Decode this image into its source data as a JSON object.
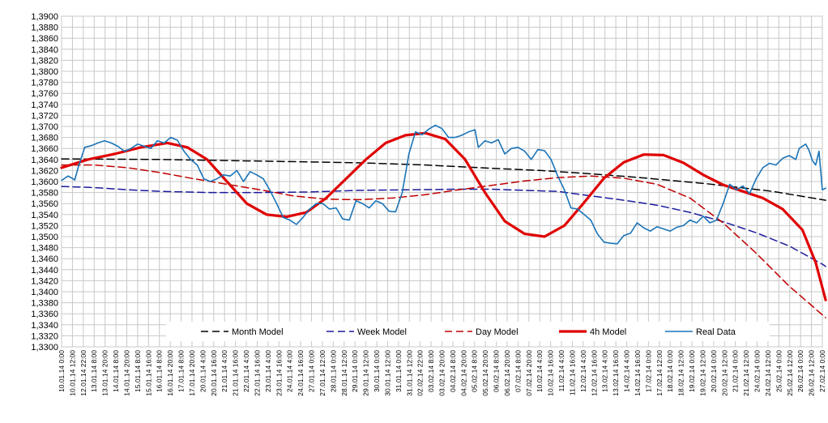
{
  "chart_data": {
    "type": "line",
    "title": "",
    "xlabel": "",
    "ylabel": "",
    "grid": true,
    "legend_position": "bottom",
    "ylim": [
      1.33,
      1.39
    ],
    "y_tick_step": 0.002,
    "x_tick_labels": [
      "10.01.14 0:00",
      "10.01.14 12:00",
      "12.01.14 22:00",
      "13.01.14 8:00",
      "13.01.14 20:00",
      "14.01.14 8:00",
      "14.01.14 20:00",
      "15.01.14 8:00",
      "15.01.14 16:00",
      "16.01.14 8:00",
      "16.01.14 20:00",
      "17.01.14 8:00",
      "17.01.14 20:00",
      "20.01.14 4:00",
      "20.01.14 16:00",
      "21.01.14 4:00",
      "21.01.14 16:00",
      "22.01.14 4:00",
      "22.01.14 16:00",
      "23.01.14 4:00",
      "23.01.14 16:00",
      "24.01.14 4:00",
      "24.01.14 16:00",
      "27.01.14 0:00",
      "27.01.14 12:00",
      "28.01.14 0:00",
      "28.01.14 12:00",
      "29.01.14 0:00",
      "29.01.14 12:00",
      "30.01.14 0:00",
      "30.01.14 12:00",
      "31.01.14 0:00",
      "31.01.14 12:00",
      "02.02.14 22:00",
      "03.02.14 8:00",
      "03.02.14 20:00",
      "04.02.14 8:00",
      "04.02.14 20:00",
      "05.02.14 8:00",
      "05.02.14 20:00",
      "06.02.14 8:00",
      "06.02.14 20:00",
      "07.02.14 8:00",
      "07.02.14 20:00",
      "10.02.14 4:00",
      "10.02.14 16:00",
      "11.02.14 4:00",
      "11.02.14 16:00",
      "12.02.14 4:00",
      "12.02.14 16:00",
      "13.02.14 4:00",
      "13.02.14 16:00",
      "14.02.14 4:00",
      "14.02.14 16:00",
      "17.02.14 0:00",
      "17.02.14 12:00",
      "18.02.14 0:00",
      "18.02.14 12:00",
      "19.02.14 0:00",
      "19.02.14 12:00",
      "20.02.14 0:00",
      "20.02.14 12:00",
      "21.02.14 0:00",
      "21.02.14 12:00",
      "24.02.14 0:00",
      "24.02.14 12:00",
      "25.02.14 0:00",
      "25.02.14 12:00",
      "26.02.14 0:00",
      "26.02.14 12:00",
      "27.02.14 0:00"
    ],
    "x_point_count": 231,
    "series": [
      {
        "name": "Month Model",
        "color": "#000000",
        "style": "dashed",
        "points": [
          [
            0,
            1.3641
          ],
          [
            30,
            1.364
          ],
          [
            60,
            1.3637
          ],
          [
            90,
            1.3634
          ],
          [
            110,
            1.363
          ],
          [
            130,
            1.3624
          ],
          [
            145,
            1.362
          ],
          [
            160,
            1.3614
          ],
          [
            175,
            1.3607
          ],
          [
            195,
            1.3596
          ],
          [
            215,
            1.3582
          ],
          [
            231,
            1.3566
          ]
        ]
      },
      {
        "name": "Week Model",
        "color": "#1a1a9c",
        "style": "dashed",
        "points": [
          [
            0,
            1.3591
          ],
          [
            10,
            1.3589
          ],
          [
            20,
            1.3585
          ],
          [
            30,
            1.3582
          ],
          [
            45,
            1.358
          ],
          [
            60,
            1.358
          ],
          [
            75,
            1.3581
          ],
          [
            90,
            1.3584
          ],
          [
            105,
            1.3585
          ],
          [
            120,
            1.3586
          ],
          [
            130,
            1.3586
          ],
          [
            140,
            1.3584
          ],
          [
            150,
            1.3582
          ],
          [
            160,
            1.3574
          ],
          [
            170,
            1.3566
          ],
          [
            180,
            1.3557
          ],
          [
            190,
            1.3544
          ],
          [
            200,
            1.3527
          ],
          [
            210,
            1.3507
          ],
          [
            220,
            1.3483
          ],
          [
            230,
            1.345
          ],
          [
            231,
            1.3446
          ]
        ]
      },
      {
        "name": "Day Model",
        "color": "#c00000",
        "style": "dashed",
        "points": [
          [
            0,
            1.363
          ],
          [
            10,
            1.363
          ],
          [
            20,
            1.3625
          ],
          [
            30,
            1.3616
          ],
          [
            40,
            1.3605
          ],
          [
            50,
            1.3595
          ],
          [
            60,
            1.3585
          ],
          [
            70,
            1.3574
          ],
          [
            80,
            1.3568
          ],
          [
            90,
            1.3567
          ],
          [
            100,
            1.357
          ],
          [
            110,
            1.3576
          ],
          [
            120,
            1.3585
          ],
          [
            130,
            1.3593
          ],
          [
            140,
            1.3601
          ],
          [
            150,
            1.3607
          ],
          [
            160,
            1.361
          ],
          [
            170,
            1.3606
          ],
          [
            180,
            1.3595
          ],
          [
            190,
            1.357
          ],
          [
            200,
            1.3525
          ],
          [
            210,
            1.347
          ],
          [
            220,
            1.341
          ],
          [
            231,
            1.3353
          ]
        ]
      },
      {
        "name": "4h Model",
        "color": "#e00000",
        "style": "solid",
        "points": [
          [
            0,
            1.3625
          ],
          [
            8,
            1.364
          ],
          [
            16,
            1.365
          ],
          [
            24,
            1.3662
          ],
          [
            32,
            1.367
          ],
          [
            38,
            1.3662
          ],
          [
            44,
            1.364
          ],
          [
            50,
            1.36
          ],
          [
            56,
            1.356
          ],
          [
            62,
            1.354
          ],
          [
            68,
            1.3536
          ],
          [
            74,
            1.3544
          ],
          [
            80,
            1.357
          ],
          [
            86,
            1.3605
          ],
          [
            92,
            1.364
          ],
          [
            98,
            1.367
          ],
          [
            104,
            1.3684
          ],
          [
            110,
            1.3688
          ],
          [
            116,
            1.3677
          ],
          [
            122,
            1.364
          ],
          [
            128,
            1.358
          ],
          [
            134,
            1.3528
          ],
          [
            140,
            1.3505
          ],
          [
            146,
            1.35
          ],
          [
            152,
            1.352
          ],
          [
            158,
            1.3562
          ],
          [
            164,
            1.3606
          ],
          [
            170,
            1.3635
          ],
          [
            176,
            1.3649
          ],
          [
            182,
            1.3648
          ],
          [
            188,
            1.3634
          ],
          [
            194,
            1.3612
          ],
          [
            200,
            1.3594
          ],
          [
            206,
            1.3582
          ],
          [
            212,
            1.357
          ],
          [
            218,
            1.355
          ],
          [
            224,
            1.3512
          ],
          [
            228,
            1.3453
          ],
          [
            231,
            1.3385
          ]
        ]
      },
      {
        "name": "Real Data",
        "color": "#1a74b8",
        "style": "solid",
        "points": [
          [
            0,
            1.3602
          ],
          [
            2,
            1.361
          ],
          [
            4,
            1.3603
          ],
          [
            5,
            1.3625
          ],
          [
            7,
            1.3662
          ],
          [
            9,
            1.3665
          ],
          [
            11,
            1.367
          ],
          [
            13,
            1.3674
          ],
          [
            15,
            1.367
          ],
          [
            17,
            1.3664
          ],
          [
            19,
            1.3655
          ],
          [
            21,
            1.366
          ],
          [
            23,
            1.3668
          ],
          [
            25,
            1.3664
          ],
          [
            27,
            1.366
          ],
          [
            29,
            1.3674
          ],
          [
            31,
            1.367
          ],
          [
            33,
            1.368
          ],
          [
            35,
            1.3675
          ],
          [
            37,
            1.3655
          ],
          [
            39,
            1.364
          ],
          [
            41,
            1.363
          ],
          [
            43,
            1.3605
          ],
          [
            45,
            1.36
          ],
          [
            47,
            1.3605
          ],
          [
            49,
            1.3612
          ],
          [
            51,
            1.361
          ],
          [
            53,
            1.362
          ],
          [
            55,
            1.36
          ],
          [
            57,
            1.3618
          ],
          [
            59,
            1.3612
          ],
          [
            61,
            1.3605
          ],
          [
            63,
            1.3584
          ],
          [
            65,
            1.356
          ],
          [
            67,
            1.3535
          ],
          [
            69,
            1.353
          ],
          [
            71,
            1.3522
          ],
          [
            73,
            1.3535
          ],
          [
            75,
            1.355
          ],
          [
            77,
            1.356
          ],
          [
            79,
            1.356
          ],
          [
            81,
            1.355
          ],
          [
            83,
            1.3552
          ],
          [
            85,
            1.3532
          ],
          [
            87,
            1.353
          ],
          [
            89,
            1.3565
          ],
          [
            91,
            1.356
          ],
          [
            93,
            1.3552
          ],
          [
            95,
            1.3565
          ],
          [
            97,
            1.356
          ],
          [
            99,
            1.3546
          ],
          [
            101,
            1.3545
          ],
          [
            103,
            1.358
          ],
          [
            105,
            1.365
          ],
          [
            107,
            1.369
          ],
          [
            109,
            1.3685
          ],
          [
            111,
            1.3695
          ],
          [
            113,
            1.3702
          ],
          [
            115,
            1.3696
          ],
          [
            117,
            1.368
          ],
          [
            119,
            1.368
          ],
          [
            121,
            1.3684
          ],
          [
            123,
            1.369
          ],
          [
            125,
            1.3694
          ],
          [
            126,
            1.3662
          ],
          [
            128,
            1.3674
          ],
          [
            130,
            1.367
          ],
          [
            132,
            1.3676
          ],
          [
            134,
            1.365
          ],
          [
            136,
            1.366
          ],
          [
            138,
            1.3662
          ],
          [
            140,
            1.3655
          ],
          [
            142,
            1.364
          ],
          [
            144,
            1.3658
          ],
          [
            146,
            1.3656
          ],
          [
            148,
            1.364
          ],
          [
            150,
            1.361
          ],
          [
            152,
            1.3585
          ],
          [
            154,
            1.3552
          ],
          [
            156,
            1.355
          ],
          [
            158,
            1.354
          ],
          [
            160,
            1.353
          ],
          [
            162,
            1.3505
          ],
          [
            164,
            1.349
          ],
          [
            166,
            1.3488
          ],
          [
            168,
            1.3487
          ],
          [
            170,
            1.3502
          ],
          [
            172,
            1.3506
          ],
          [
            174,
            1.3525
          ],
          [
            176,
            1.3516
          ],
          [
            178,
            1.351
          ],
          [
            180,
            1.3518
          ],
          [
            182,
            1.3514
          ],
          [
            184,
            1.351
          ],
          [
            186,
            1.3517
          ],
          [
            188,
            1.352
          ],
          [
            190,
            1.353
          ],
          [
            192,
            1.3525
          ],
          [
            194,
            1.3537
          ],
          [
            196,
            1.3525
          ],
          [
            198,
            1.353
          ],
          [
            200,
            1.356
          ],
          [
            202,
            1.3595
          ],
          [
            204,
            1.3585
          ],
          [
            206,
            1.3592
          ],
          [
            208,
            1.3578
          ],
          [
            210,
            1.3605
          ],
          [
            212,
            1.3625
          ],
          [
            214,
            1.3633
          ],
          [
            216,
            1.363
          ],
          [
            218,
            1.3642
          ],
          [
            220,
            1.3647
          ],
          [
            222,
            1.364
          ],
          [
            223,
            1.366
          ],
          [
            225,
            1.3668
          ],
          [
            226,
            1.3656
          ],
          [
            227,
            1.3638
          ],
          [
            228,
            1.363
          ],
          [
            229,
            1.3655
          ],
          [
            230,
            1.3585
          ],
          [
            231,
            1.3588
          ]
        ]
      }
    ]
  }
}
